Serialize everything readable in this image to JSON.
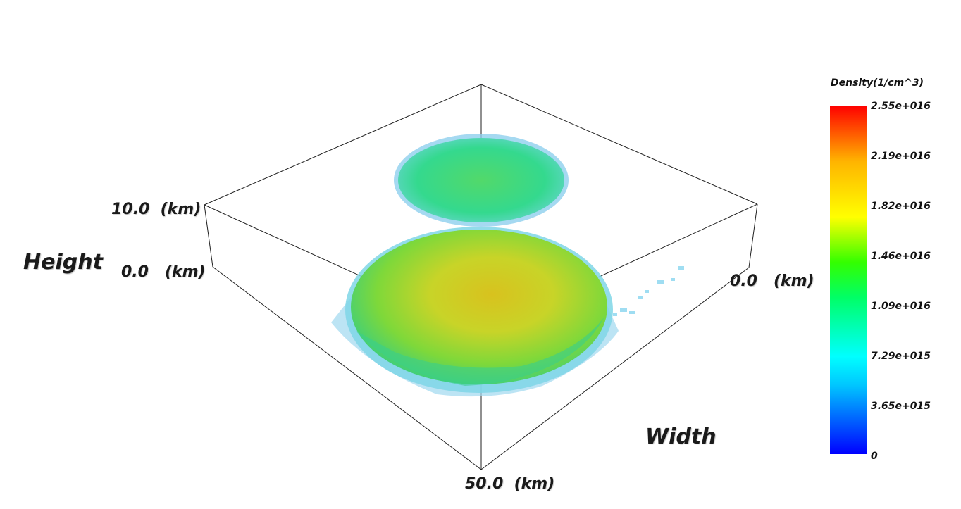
{
  "chart_data": {
    "type": "heatmap",
    "title": "",
    "colorbar": {
      "title": "Density(1/cm^3)",
      "min": 0,
      "max": 2.55e+16,
      "ticks": [
        "2.55e+016",
        "2.19e+016",
        "1.82e+016",
        "1.46e+016",
        "1.09e+016",
        "7.29e+015",
        "3.65e+015",
        "0"
      ],
      "colormap": [
        "#0000ff",
        "#00ffff",
        "#00ff00",
        "#ffff00",
        "#ff0000"
      ]
    },
    "axes": {
      "height": {
        "label": "Height",
        "ticks": [
          "10.0  (km)",
          "0.0   (km)"
        ],
        "range": [
          0,
          10
        ]
      },
      "width": {
        "label": "Width",
        "ticks": [
          "0.0   (km)",
          "50.0  (km)"
        ],
        "range": [
          0,
          50
        ]
      }
    },
    "regions": [
      {
        "name": "upper-disk",
        "dominant_color": "#3fd98a",
        "approx_density": 1.1e+16
      },
      {
        "name": "lower-disk",
        "dominant_color": "#c9d62a",
        "approx_density": 1.9e+16
      }
    ]
  }
}
